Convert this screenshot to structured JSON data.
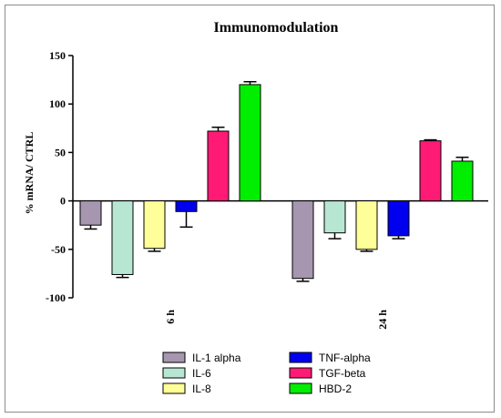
{
  "chart_data": {
    "type": "bar",
    "title": "Immunomodulation",
    "ylabel": "% mRNA/ CTRL",
    "xlabel": "",
    "ylim": [
      -100,
      150
    ],
    "yticks": [
      -100,
      -50,
      0,
      50,
      100,
      150
    ],
    "categories": [
      "6 h",
      "24 h"
    ],
    "series": [
      {
        "name": "IL-1 alpha",
        "color": "#a796b0",
        "values": [
          -25,
          -80
        ],
        "errors": [
          4,
          3
        ]
      },
      {
        "name": "IL-6",
        "color": "#b7e7d2",
        "values": [
          -76,
          -33
        ],
        "errors": [
          3,
          6
        ]
      },
      {
        "name": "IL-8",
        "color": "#ffff99",
        "values": [
          -49,
          -50
        ],
        "errors": [
          3,
          2
        ]
      },
      {
        "name": "TNF-alpha",
        "color": "#0000ee",
        "values": [
          -11,
          -36
        ],
        "errors": [
          16,
          3
        ]
      },
      {
        "name": "TGF-beta",
        "color": "#ff1a75",
        "values": [
          72,
          62
        ],
        "errors": [
          4,
          1
        ]
      },
      {
        "name": "HBD-2",
        "color": "#00ee00",
        "values": [
          120,
          41
        ],
        "errors": [
          3,
          4
        ]
      }
    ],
    "legend_position": "bottom",
    "grid": false
  }
}
